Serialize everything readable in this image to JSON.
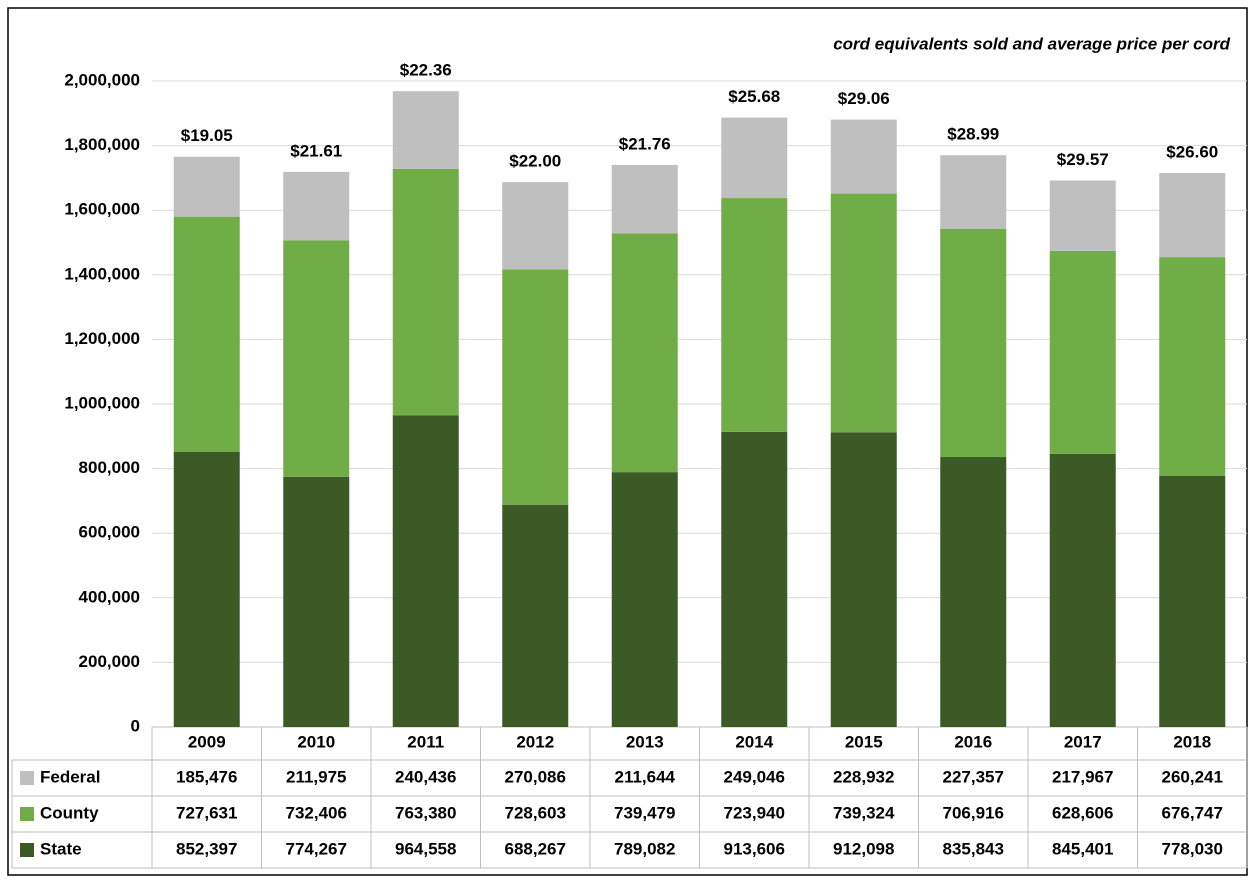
{
  "chart_data": {
    "type": "stacked_bar",
    "title": "cord equivalents sold and average price per cord",
    "categories": [
      "2009",
      "2010",
      "2011",
      "2012",
      "2013",
      "2014",
      "2015",
      "2016",
      "2017",
      "2018"
    ],
    "series": [
      {
        "name": "State",
        "color": "#3b5a25",
        "values": [
          852397,
          774267,
          964558,
          688267,
          789082,
          913606,
          912098,
          835843,
          845401,
          778030
        ],
        "value_labels": [
          "852,397",
          "774,267",
          "964,558",
          "688,267",
          "789,082",
          "913,606",
          "912,098",
          "835,843",
          "845,401",
          "778,030"
        ]
      },
      {
        "name": "County",
        "color": "#70ad47",
        "values": [
          727631,
          732406,
          763380,
          728603,
          739479,
          723940,
          739324,
          706916,
          628606,
          676747
        ],
        "value_labels": [
          "727,631",
          "732,406",
          "763,380",
          "728,603",
          "739,479",
          "723,940",
          "739,324",
          "706,916",
          "628,606",
          "676,747"
        ]
      },
      {
        "name": "Federal",
        "color": "#bfbfbf",
        "values": [
          185476,
          211975,
          240436,
          270086,
          211644,
          249046,
          228932,
          227357,
          217967,
          260241
        ],
        "value_labels": [
          "185,476",
          "211,975",
          "240,436",
          "270,086",
          "211,644",
          "249,046",
          "228,932",
          "227,357",
          "217,967",
          "260,241"
        ]
      }
    ],
    "annotations": [
      "$19.05",
      "$21.61",
      "$22.36",
      "$22.00",
      "$21.76",
      "$25.68",
      "$29.06",
      "$28.99",
      "$29.57",
      "$26.60"
    ],
    "ylim": [
      0,
      2000000
    ],
    "yticks": [
      0,
      {
        "value": 200000,
        "label": "200,000"
      },
      {
        "value": 400000,
        "label": "400,000"
      },
      {
        "value": 600000,
        "label": "600,000"
      },
      {
        "value": 800000,
        "label": "800,000"
      },
      {
        "value": 1000000,
        "label": "1,000,000"
      },
      {
        "value": 1200000,
        "label": "1,200,000"
      },
      {
        "value": 1400000,
        "label": "1,400,000"
      },
      {
        "value": 1600000,
        "label": "1,600,000"
      },
      {
        "value": 1800000,
        "label": "1,800,000"
      },
      {
        "value": 2000000,
        "label": "2,000,000"
      }
    ],
    "grid": true
  }
}
